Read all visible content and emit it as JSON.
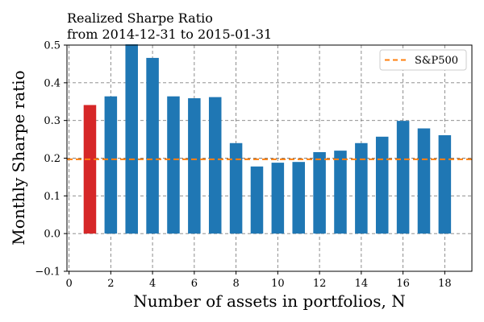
{
  "chart_data": {
    "type": "bar",
    "title": "Realized Sharpe Ratio",
    "subtitle": "from 2014-12-31 to 2015-01-31",
    "xlabel": "Number of assets in portfolios, N",
    "ylabel": "Monthly Sharpe ratio",
    "xlim": [
      -0.1,
      19.3
    ],
    "ylim": [
      -0.1,
      0.5
    ],
    "xticks": [
      0,
      2,
      4,
      6,
      8,
      10,
      12,
      14,
      16,
      18
    ],
    "yticks": [
      -0.1,
      0.0,
      0.1,
      0.2,
      0.3,
      0.4,
      0.5
    ],
    "x": [
      1,
      2,
      3,
      4,
      5,
      6,
      7,
      8,
      9,
      10,
      11,
      12,
      13,
      14,
      15,
      16,
      17,
      18
    ],
    "values": [
      0.341,
      0.364,
      0.502,
      0.466,
      0.364,
      0.359,
      0.362,
      0.24,
      0.178,
      0.188,
      0.19,
      0.216,
      0.22,
      0.24,
      0.257,
      0.299,
      0.279,
      0.261
    ],
    "bar_colors": [
      "#d62728",
      "#1f77b4",
      "#1f77b4",
      "#1f77b4",
      "#1f77b4",
      "#1f77b4",
      "#1f77b4",
      "#1f77b4",
      "#1f77b4",
      "#1f77b4",
      "#1f77b4",
      "#1f77b4",
      "#1f77b4",
      "#1f77b4",
      "#1f77b4",
      "#1f77b4",
      "#1f77b4",
      "#1f77b4"
    ],
    "reference_line": {
      "name": "S&P500",
      "value": 0.197,
      "color": "#ff7f0e",
      "style": "dashed"
    },
    "legend": {
      "entries": [
        "S&P500"
      ],
      "placement": "top-right"
    },
    "grid": true,
    "grid_style": "dashed"
  }
}
